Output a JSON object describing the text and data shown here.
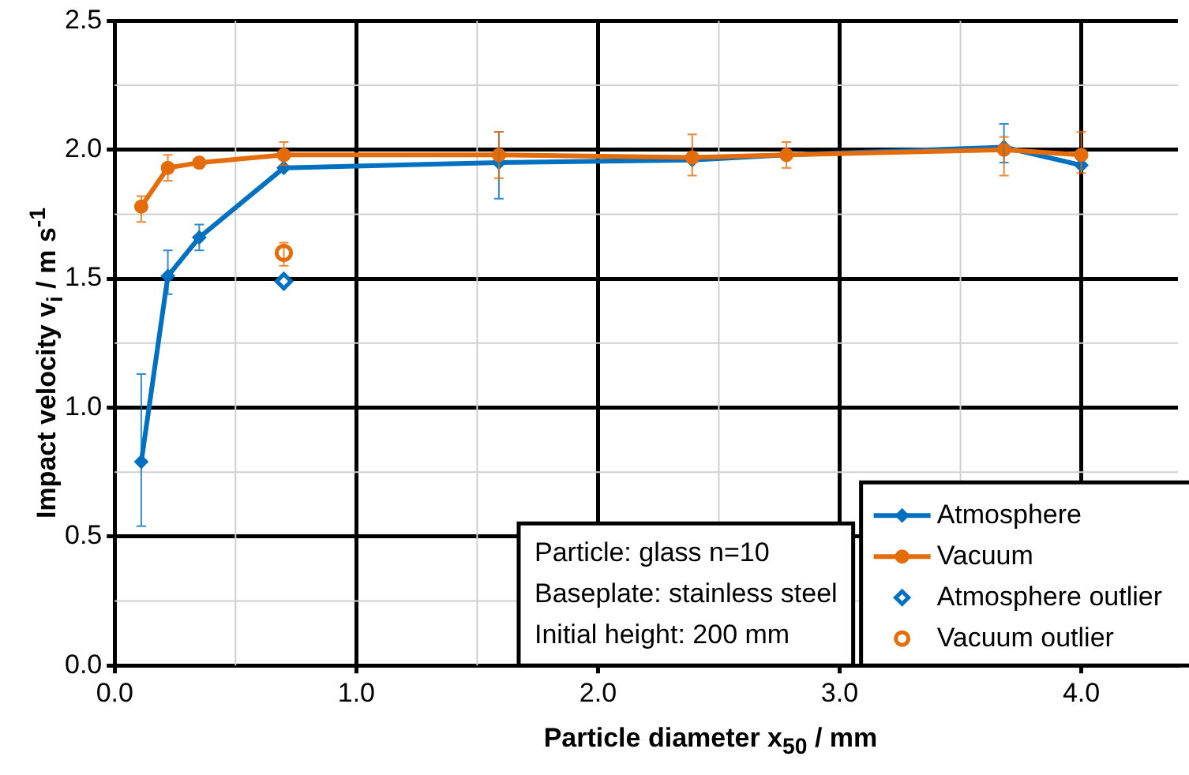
{
  "chart_data": {
    "type": "line",
    "xlabel": "Particle diameter x$_{50}$ / mm",
    "ylabel": "Impact velocity v$_{i}$ / m s$^{-1}$",
    "xlim": [
      0,
      4.4
    ],
    "ylim": [
      0,
      2.5
    ],
    "xticks": [
      {
        "value": 0,
        "label": "0.0"
      },
      {
        "value": 1,
        "label": "1.0"
      },
      {
        "value": 2,
        "label": "2.0"
      },
      {
        "value": 3,
        "label": "3.0"
      },
      {
        "value": 4,
        "label": "4.0"
      }
    ],
    "yticks": [
      {
        "value": 0,
        "label": "0.0"
      },
      {
        "value": 0.5,
        "label": "0.5"
      },
      {
        "value": 1,
        "label": "1.0"
      },
      {
        "value": 1.5,
        "label": "1.5"
      },
      {
        "value": 2,
        "label": "2.0"
      },
      {
        "value": 2.5,
        "label": "2.5"
      }
    ],
    "grid": true,
    "legend": "bottom right",
    "line_style": "solid",
    "series": [
      {
        "name": "Atmosphere",
        "marker": "diamond",
        "color": "#0070c0",
        "x": [
          0.11,
          0.22,
          0.35,
          0.7,
          1.59,
          2.39,
          2.78,
          3.68,
          4.0
        ],
        "values": [
          0.79,
          1.51,
          1.66,
          1.93,
          1.95,
          1.96,
          1.98,
          2.01,
          1.94
        ],
        "errors": [
          [
            0.54,
            1.13
          ],
          [
            1.44,
            1.61
          ],
          [
            1.61,
            1.71
          ],
          null,
          [
            1.81,
            2.07
          ],
          null,
          null,
          [
            1.95,
            2.1
          ],
          null
        ]
      },
      {
        "name": "Vacuum",
        "marker": "circle",
        "color": "#e46c0a",
        "x": [
          0.11,
          0.22,
          0.35,
          0.7,
          1.59,
          2.39,
          2.78,
          3.68,
          4.0
        ],
        "values": [
          1.78,
          1.93,
          1.95,
          1.98,
          1.98,
          1.97,
          1.98,
          2.0,
          1.98
        ],
        "errors": [
          [
            1.72,
            1.82
          ],
          [
            1.88,
            1.98
          ],
          null,
          [
            1.94,
            2.03
          ],
          [
            1.89,
            2.07
          ],
          [
            1.9,
            2.06
          ],
          [
            1.93,
            2.03
          ],
          [
            1.9,
            2.05
          ],
          [
            1.91,
            2.07
          ]
        ]
      },
      {
        "name": "Atmosphere outlier",
        "type": "scatter",
        "marker": "diamond",
        "color": "#0070c0",
        "x": [
          0.7
        ],
        "values": [
          1.49
        ]
      },
      {
        "name": "Vacuum outlier",
        "type": "scatter",
        "marker": "circle",
        "color": "#e46c0a",
        "x": [
          0.7
        ],
        "values": [
          1.6
        ],
        "errors": [
          [
            1.55,
            1.64
          ]
        ]
      }
    ],
    "annotations": [
      "Particle: glass n=10",
      "Baseplate: stainless steel",
      "Initial height: 200 mm"
    ]
  }
}
